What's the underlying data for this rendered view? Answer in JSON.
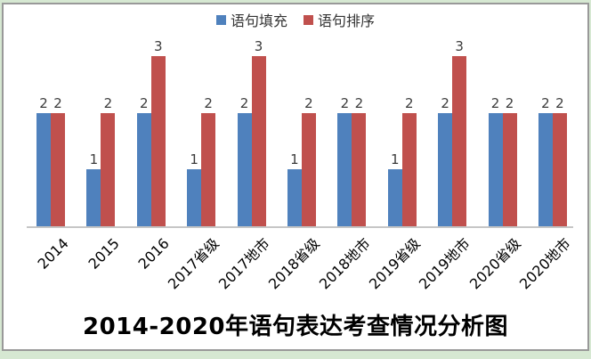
{
  "page": {
    "background_color": "#d6e8d2",
    "frame_border_color": "#999999",
    "plot_background_color": "#ffffff",
    "axis_line_color": "#c6c6c6",
    "value_label_color": "#3b3b3b"
  },
  "chart_data": {
    "type": "bar",
    "title": "2014-2020年语句表达考查情况分析图",
    "categories": [
      "2014",
      "2015",
      "2016",
      "2017省级",
      "2017地市",
      "2018省级",
      "2018地市",
      "2019省级",
      "2019地市",
      "2020省级",
      "2020地市"
    ],
    "series": [
      {
        "name": "语句填充",
        "color": "#4F81BD",
        "values": [
          2,
          1,
          2,
          1,
          2,
          1,
          2,
          1,
          2,
          2,
          2
        ]
      },
      {
        "name": "语句排序",
        "color": "#C0504D",
        "values": [
          2,
          2,
          3,
          2,
          3,
          2,
          2,
          2,
          3,
          2,
          2
        ]
      }
    ],
    "ylim": [
      0,
      3
    ],
    "grid": false,
    "legend_position": "top",
    "value_labels_shown": true,
    "x_tick_rotation_deg": 45,
    "y_axis_shown": false
  }
}
